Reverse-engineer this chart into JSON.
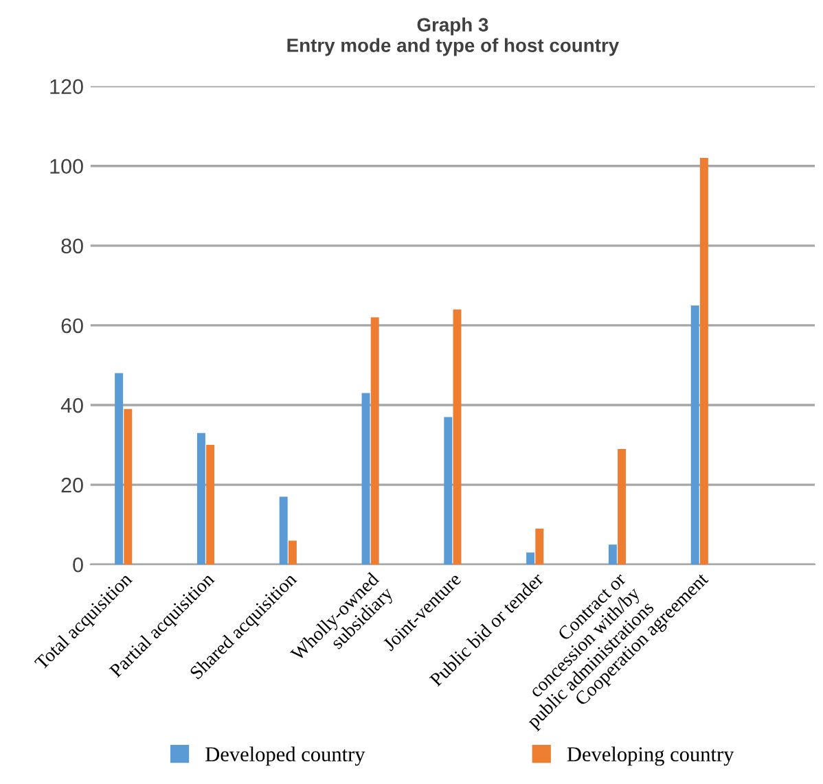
{
  "chart_data": {
    "type": "bar",
    "title": "Graph 3\nEntry mode and type of host country",
    "categories": [
      "Total acquisition",
      "Partial acquisition",
      "Shared acquisition",
      "Wholly-owned\nsubsidiary",
      "Joint-venture",
      "Public bid or tender",
      "Contract or\nconcession with/by\npublic administrations",
      "Cooperation agreement",
      null
    ],
    "series": [
      {
        "name": "Developed country",
        "color": "#5b9bd5",
        "values": [
          48,
          33,
          17,
          43,
          37,
          3,
          5,
          65,
          null
        ]
      },
      {
        "name": "Developing country",
        "color": "#ed7d31",
        "values": [
          39,
          30,
          6,
          62,
          64,
          9,
          29,
          102,
          null
        ]
      }
    ],
    "ylim": [
      0,
      120
    ],
    "yticks": [
      0,
      20,
      40,
      60,
      80,
      100,
      120
    ],
    "grid": "y",
    "legend": "bottom"
  }
}
